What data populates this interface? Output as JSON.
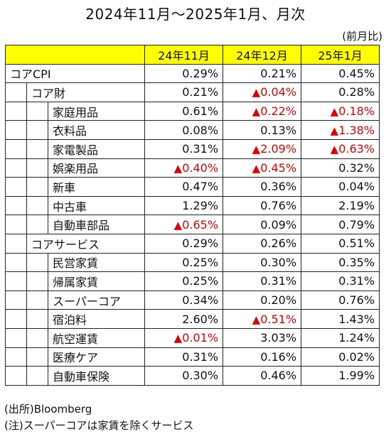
{
  "title": "2024年11月～2025年1月、月次",
  "unit": "(前月比)",
  "columns": [
    "24年11月",
    "24年12月",
    "25年1月"
  ],
  "rows": [
    {
      "label": "コアCPI",
      "level": 0,
      "values": [
        "0.29%",
        "0.21%",
        "0.45%"
      ],
      "neg": [
        false,
        false,
        false
      ]
    },
    {
      "label": "コア財",
      "level": 1,
      "values": [
        "0.21%",
        "0.04%",
        "0.28%"
      ],
      "neg": [
        false,
        true,
        false
      ]
    },
    {
      "label": "家庭用品",
      "level": 2,
      "values": [
        "0.61%",
        "0.22%",
        "0.18%"
      ],
      "neg": [
        false,
        true,
        true
      ]
    },
    {
      "label": "衣料品",
      "level": 2,
      "values": [
        "0.08%",
        "0.13%",
        "1.38%"
      ],
      "neg": [
        false,
        false,
        true
      ]
    },
    {
      "label": "家電製品",
      "level": 2,
      "values": [
        "0.31%",
        "2.09%",
        "0.63%"
      ],
      "neg": [
        false,
        true,
        true
      ]
    },
    {
      "label": "娯楽用品",
      "level": 2,
      "values": [
        "0.40%",
        "0.45%",
        "0.32%"
      ],
      "neg": [
        true,
        true,
        false
      ]
    },
    {
      "label": "新車",
      "level": 2,
      "values": [
        "0.47%",
        "0.36%",
        "0.04%"
      ],
      "neg": [
        false,
        false,
        false
      ]
    },
    {
      "label": "中古車",
      "level": 2,
      "values": [
        "1.29%",
        "0.76%",
        "2.19%"
      ],
      "neg": [
        false,
        false,
        false
      ]
    },
    {
      "label": "自動車部品",
      "level": 2,
      "values": [
        "0.65%",
        "0.09%",
        "0.79%"
      ],
      "neg": [
        true,
        false,
        false
      ]
    },
    {
      "label": "コアサービス",
      "level": 1,
      "values": [
        "0.29%",
        "0.26%",
        "0.51%"
      ],
      "neg": [
        false,
        false,
        false
      ]
    },
    {
      "label": "民営家賃",
      "level": 2,
      "values": [
        "0.25%",
        "0.30%",
        "0.35%"
      ],
      "neg": [
        false,
        false,
        false
      ]
    },
    {
      "label": "帰属家賃",
      "level": 2,
      "values": [
        "0.25%",
        "0.31%",
        "0.31%"
      ],
      "neg": [
        false,
        false,
        false
      ]
    },
    {
      "label": "スーパーコア",
      "level": 2,
      "values": [
        "0.34%",
        "0.20%",
        "0.76%"
      ],
      "neg": [
        false,
        false,
        false
      ]
    },
    {
      "label": "宿泊料",
      "level": 2,
      "values": [
        "2.60%",
        "0.51%",
        "1.43%"
      ],
      "neg": [
        false,
        true,
        false
      ]
    },
    {
      "label": "航空運賃",
      "level": 2,
      "values": [
        "0.01%",
        "3.03%",
        "1.24%"
      ],
      "neg": [
        true,
        false,
        false
      ]
    },
    {
      "label": "医療ケア",
      "level": 2,
      "values": [
        "0.31%",
        "0.16%",
        "0.02%"
      ],
      "neg": [
        false,
        false,
        false
      ]
    },
    {
      "label": "自動車保険",
      "level": 2,
      "values": [
        "0.30%",
        "0.46%",
        "1.99%"
      ],
      "neg": [
        false,
        false,
        false
      ]
    }
  ],
  "neg_marker": "▲",
  "colors": {
    "header_bg": "#ffff00",
    "negative": "#e00000"
  },
  "notes": {
    "source": "(出所)Bloomberg",
    "note": "(注)スーパーコアは家賃を除くサービス"
  }
}
